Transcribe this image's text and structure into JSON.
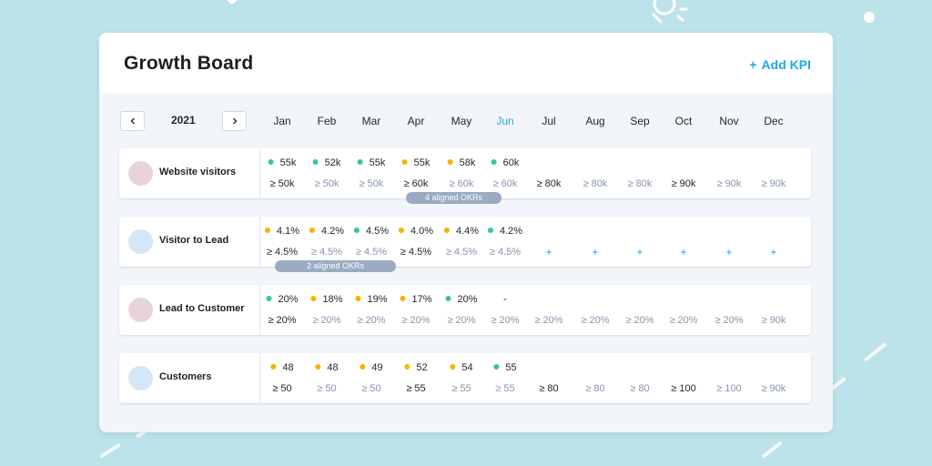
{
  "colors": {
    "accent": "#1ea7e8",
    "on_track": "#36c98a",
    "at_risk": "#f5b400",
    "plan_text": "#8795ad",
    "pill": "#9aacc1"
  },
  "board": {
    "title": "Growth Board",
    "add_kpi_label": "Add KPI",
    "add_kpi_icon": "plus-icon",
    "year": "2021",
    "prev_icon": "chevron-left-icon",
    "next_icon": "chevron-right-icon",
    "active_month": "Jun",
    "months": [
      "Jan",
      "Feb",
      "Mar",
      "Apr",
      "May",
      "Jun",
      "Jul",
      "Aug",
      "Sep",
      "Oct",
      "Nov",
      "Dec"
    ]
  },
  "kpis": [
    {
      "name": "Website visitors",
      "avatar_color": "#e8d3dc",
      "actuals": [
        {
          "value": "55k",
          "status": "green"
        },
        {
          "value": "52k",
          "status": "green"
        },
        {
          "value": "55k",
          "status": "green"
        },
        {
          "value": "55k",
          "status": "yellow"
        },
        {
          "value": "58k",
          "status": "yellow"
        },
        {
          "value": "60k",
          "status": "green"
        }
      ],
      "targets": [
        {
          "value": "≥ 50k",
          "kind": "set"
        },
        {
          "value": "≥ 50k",
          "kind": "plan"
        },
        {
          "value": "≥ 50k",
          "kind": "plan"
        },
        {
          "value": "≥ 60k",
          "kind": "set"
        },
        {
          "value": "≥ 60k",
          "kind": "plan"
        },
        {
          "value": "≥ 60k",
          "kind": "plan"
        },
        {
          "value": "≥ 80k",
          "kind": "set"
        },
        {
          "value": "≥ 80k",
          "kind": "plan"
        },
        {
          "value": "≥ 80k",
          "kind": "plan"
        },
        {
          "value": "≥ 90k",
          "kind": "set"
        },
        {
          "value": "≥ 90k",
          "kind": "plan"
        },
        {
          "value": "≥ 90k",
          "kind": "plan"
        }
      ],
      "okr_label": "4 aligned OKRs"
    },
    {
      "name": "Visitor to Lead",
      "avatar_color": "#d4e7f8",
      "actuals": [
        {
          "value": "4.1%",
          "status": "yellow"
        },
        {
          "value": "4.2%",
          "status": "yellow"
        },
        {
          "value": "4.5%",
          "status": "green"
        },
        {
          "value": "4.0%",
          "status": "yellow"
        },
        {
          "value": "4.4%",
          "status": "yellow"
        },
        {
          "value": "4.2%",
          "status": "green"
        }
      ],
      "targets": [
        {
          "value": "≥ 4.5%",
          "kind": "set"
        },
        {
          "value": "≥ 4.5%",
          "kind": "plan"
        },
        {
          "value": "≥ 4.5%",
          "kind": "plan"
        },
        {
          "value": "≥ 4.5%",
          "kind": "set"
        },
        {
          "value": "≥ 4.5%",
          "kind": "plan"
        },
        {
          "value": "≥ 4.5%",
          "kind": "plan"
        },
        {
          "value": "+",
          "kind": "add"
        },
        {
          "value": "+",
          "kind": "add"
        },
        {
          "value": "+",
          "kind": "add"
        },
        {
          "value": "+",
          "kind": "add"
        },
        {
          "value": "+",
          "kind": "add"
        },
        {
          "value": "+",
          "kind": "add"
        }
      ],
      "okr_label": "2 aligned OKRs"
    },
    {
      "name": "Lead to Customer",
      "avatar_color": "#e8d3dc",
      "actuals": [
        {
          "value": "20%",
          "status": "green"
        },
        {
          "value": "18%",
          "status": "yellow"
        },
        {
          "value": "19%",
          "status": "yellow"
        },
        {
          "value": "17%",
          "status": "yellow"
        },
        {
          "value": "20%",
          "status": "green"
        },
        {
          "value": "-",
          "status": "none"
        }
      ],
      "targets": [
        {
          "value": "≥ 20%",
          "kind": "set"
        },
        {
          "value": "≥ 20%",
          "kind": "plan"
        },
        {
          "value": "≥ 20%",
          "kind": "plan"
        },
        {
          "value": "≥ 20%",
          "kind": "plan"
        },
        {
          "value": "≥ 20%",
          "kind": "plan"
        },
        {
          "value": "≥ 20%",
          "kind": "plan"
        },
        {
          "value": "≥ 20%",
          "kind": "plan"
        },
        {
          "value": "≥ 20%",
          "kind": "plan"
        },
        {
          "value": "≥ 20%",
          "kind": "plan"
        },
        {
          "value": "≥ 20%",
          "kind": "plan"
        },
        {
          "value": "≥ 20%",
          "kind": "plan"
        },
        {
          "value": "≥ 90k",
          "kind": "plan"
        }
      ],
      "okr_label": ""
    },
    {
      "name": "Customers",
      "avatar_color": "#d4e7f8",
      "actuals": [
        {
          "value": "48",
          "status": "yellow"
        },
        {
          "value": "48",
          "status": "yellow"
        },
        {
          "value": "49",
          "status": "yellow"
        },
        {
          "value": "52",
          "status": "yellow"
        },
        {
          "value": "54",
          "status": "yellow"
        },
        {
          "value": "55",
          "status": "green"
        }
      ],
      "targets": [
        {
          "value": "≥ 50",
          "kind": "set"
        },
        {
          "value": "≥ 50",
          "kind": "plan"
        },
        {
          "value": "≥ 50",
          "kind": "plan"
        },
        {
          "value": "≥ 55",
          "kind": "set"
        },
        {
          "value": "≥ 55",
          "kind": "plan"
        },
        {
          "value": "≥ 55",
          "kind": "plan"
        },
        {
          "value": "≥ 80",
          "kind": "set"
        },
        {
          "value": "≥ 80",
          "kind": "plan"
        },
        {
          "value": "≥ 80",
          "kind": "plan"
        },
        {
          "value": "≥ 100",
          "kind": "set"
        },
        {
          "value": "≥ 100",
          "kind": "plan"
        },
        {
          "value": "≥ 90k",
          "kind": "plan"
        }
      ],
      "okr_label": ""
    }
  ]
}
